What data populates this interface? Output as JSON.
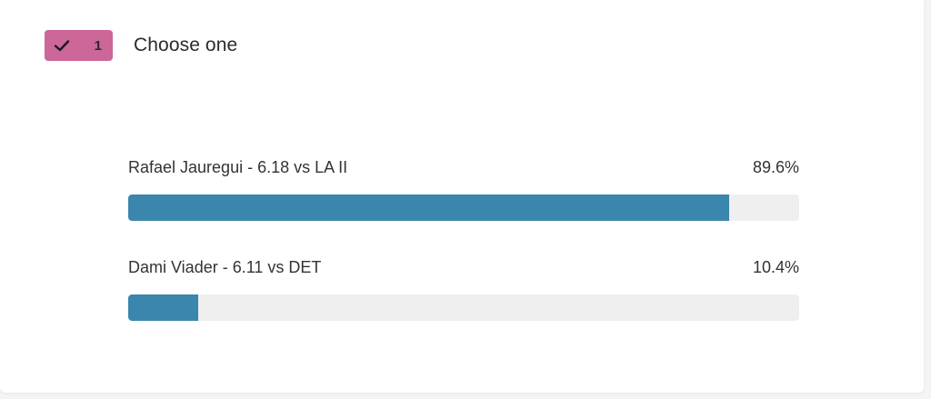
{
  "question": {
    "badge_number": "1",
    "badge_color": "#cd6699",
    "badge_icon": "check-icon",
    "title": "Choose one"
  },
  "results": {
    "bar_color": "#3a86ad",
    "options": [
      {
        "label": "Rafael Jauregui - 6.18 vs LA II",
        "percent_label": "89.6%",
        "percent": 89.6
      },
      {
        "label": "Dami Viader - 6.11 vs DET",
        "percent_label": "10.4%",
        "percent": 10.4
      }
    ]
  }
}
